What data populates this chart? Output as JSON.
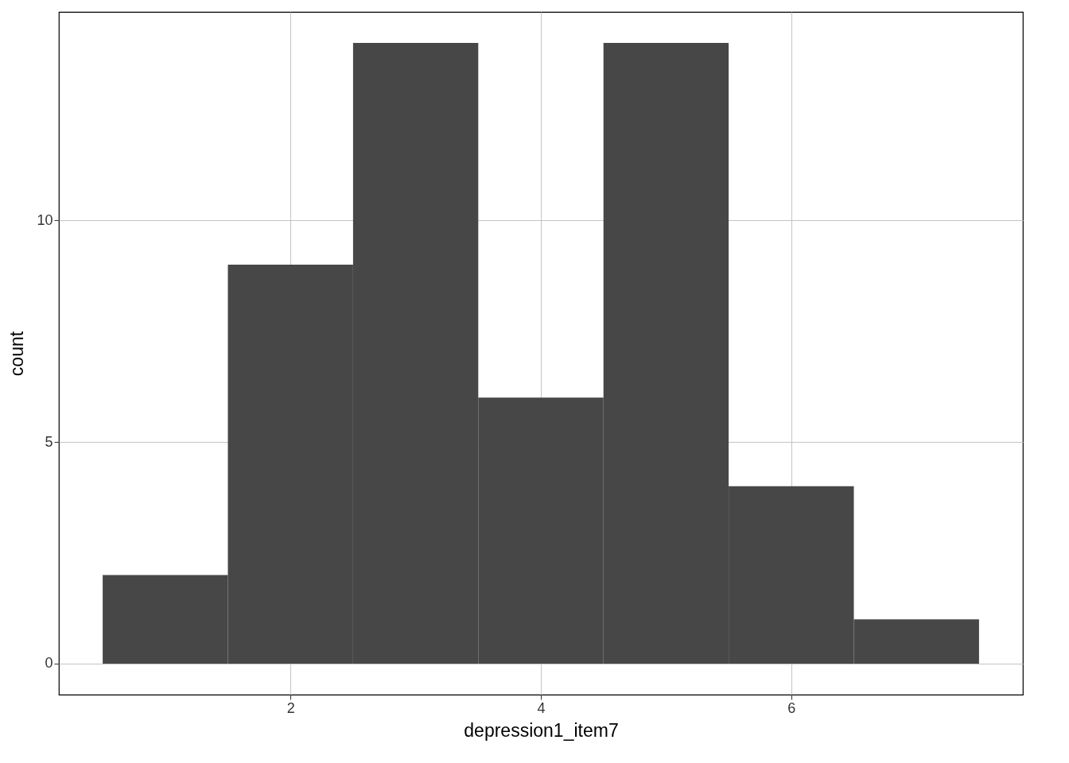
{
  "chart_data": {
    "type": "histogram",
    "xlabel": "depression1_item7",
    "ylabel": "count",
    "bins": [
      0.5,
      1.5,
      2.5,
      3.5,
      4.5,
      5.5,
      6.5,
      7.5
    ],
    "values": [
      2,
      9,
      14,
      6,
      14,
      4,
      1
    ],
    "color": "#474747",
    "xlim": [
      0.15,
      7.85
    ],
    "xticks": [
      2,
      4,
      6
    ],
    "ylim": [
      -0.7,
      14.7
    ],
    "yticks": [
      0,
      5,
      10
    ],
    "grid": true
  }
}
